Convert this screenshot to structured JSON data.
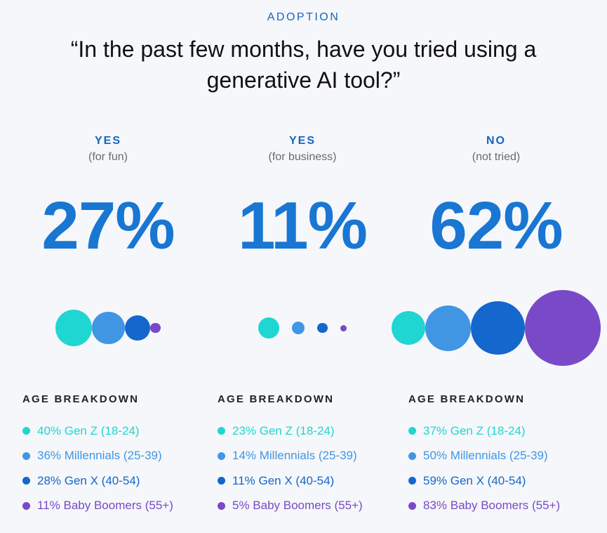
{
  "header": {
    "eyebrow": "ADOPTION",
    "question_line1": "“In the past few months, have you tried using a",
    "question_line2": "generative AI tool?”"
  },
  "colors": {
    "gen_z": "#1fd6d2",
    "millennials": "#4196e4",
    "gen_x": "#1467cc",
    "baby_boomers": "#7a49c8",
    "accent": "#1976d2"
  },
  "breakdown_title": "AGE BREAKDOWN",
  "columns": [
    {
      "label": "YES",
      "sublabel": "(for fun)",
      "percent": "27%",
      "percent_value": 27,
      "groups": [
        {
          "key": "gen_z",
          "value": 40,
          "text": "40% Gen Z (18-24)"
        },
        {
          "key": "millennials",
          "value": 36,
          "text": "36% Millennials (25-39)"
        },
        {
          "key": "gen_x",
          "value": 28,
          "text": "28% Gen X (40-54)"
        },
        {
          "key": "baby_boomers",
          "value": 11,
          "text": "11% Baby Boomers (55+)"
        }
      ]
    },
    {
      "label": "YES",
      "sublabel": "(for business)",
      "percent": "11%",
      "percent_value": 11,
      "groups": [
        {
          "key": "gen_z",
          "value": 23,
          "text": "23% Gen Z (18-24)"
        },
        {
          "key": "millennials",
          "value": 14,
          "text": "14% Millennials (25-39)"
        },
        {
          "key": "gen_x",
          "value": 11,
          "text": "11% Gen X (40-54)"
        },
        {
          "key": "baby_boomers",
          "value": 5,
          "text": "5% Baby Boomers (55+)"
        }
      ]
    },
    {
      "label": "NO",
      "sublabel": "(not tried)",
      "percent": "62%",
      "percent_value": 62,
      "groups": [
        {
          "key": "gen_z",
          "value": 37,
          "text": "37% Gen Z (18-24)"
        },
        {
          "key": "millennials",
          "value": 50,
          "text": "50% Millennials (25-39)"
        },
        {
          "key": "gen_x",
          "value": 59,
          "text": "59% Gen X (40-54)"
        },
        {
          "key": "baby_boomers",
          "value": 83,
          "text": "83% Baby Boomers (55+)"
        }
      ]
    }
  ]
}
